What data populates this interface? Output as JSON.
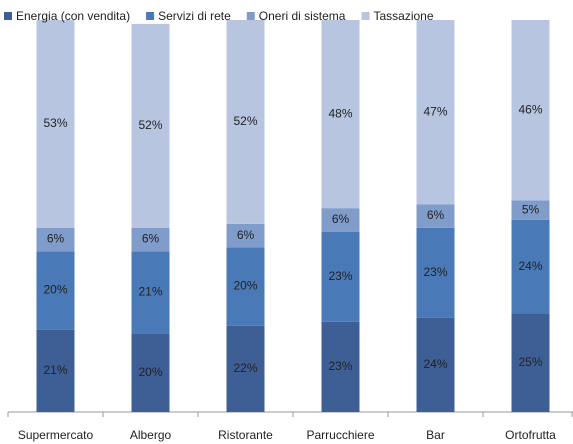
{
  "chart_data": {
    "type": "stacked_bar",
    "categories": [
      "Supermercato",
      "Albergo",
      "Ristorante",
      "Parrucchiere",
      "Bar",
      "Ortofrutta"
    ],
    "series": [
      {
        "name": "Energia (con vendita)",
        "color": "#3d5f96",
        "values": [
          21,
          20,
          22,
          23,
          24,
          25
        ],
        "value_labels": [
          "21%",
          "20%",
          "22%",
          "23%",
          "24%",
          "25%"
        ]
      },
      {
        "name": "Servizi di rete",
        "color": "#4a79b8",
        "values": [
          20,
          21,
          20,
          23,
          23,
          24
        ],
        "value_labels": [
          "20%",
          "21%",
          "20%",
          "23%",
          "23%",
          "24%"
        ]
      },
      {
        "name": "Oneri di sistema",
        "color": "#809cca",
        "values": [
          6,
          6,
          6,
          6,
          6,
          5
        ],
        "value_labels": [
          "6%",
          "6%",
          "6%",
          "6%",
          "6%",
          "5%"
        ]
      },
      {
        "name": "Tassazione",
        "color": "#b7c5e1",
        "values": [
          53,
          52,
          52,
          48,
          47,
          46
        ],
        "value_labels": [
          "53%",
          "52%",
          "52%",
          "48%",
          "47%",
          "46%"
        ]
      }
    ],
    "ylim": [
      0,
      100
    ],
    "legend": "top"
  }
}
